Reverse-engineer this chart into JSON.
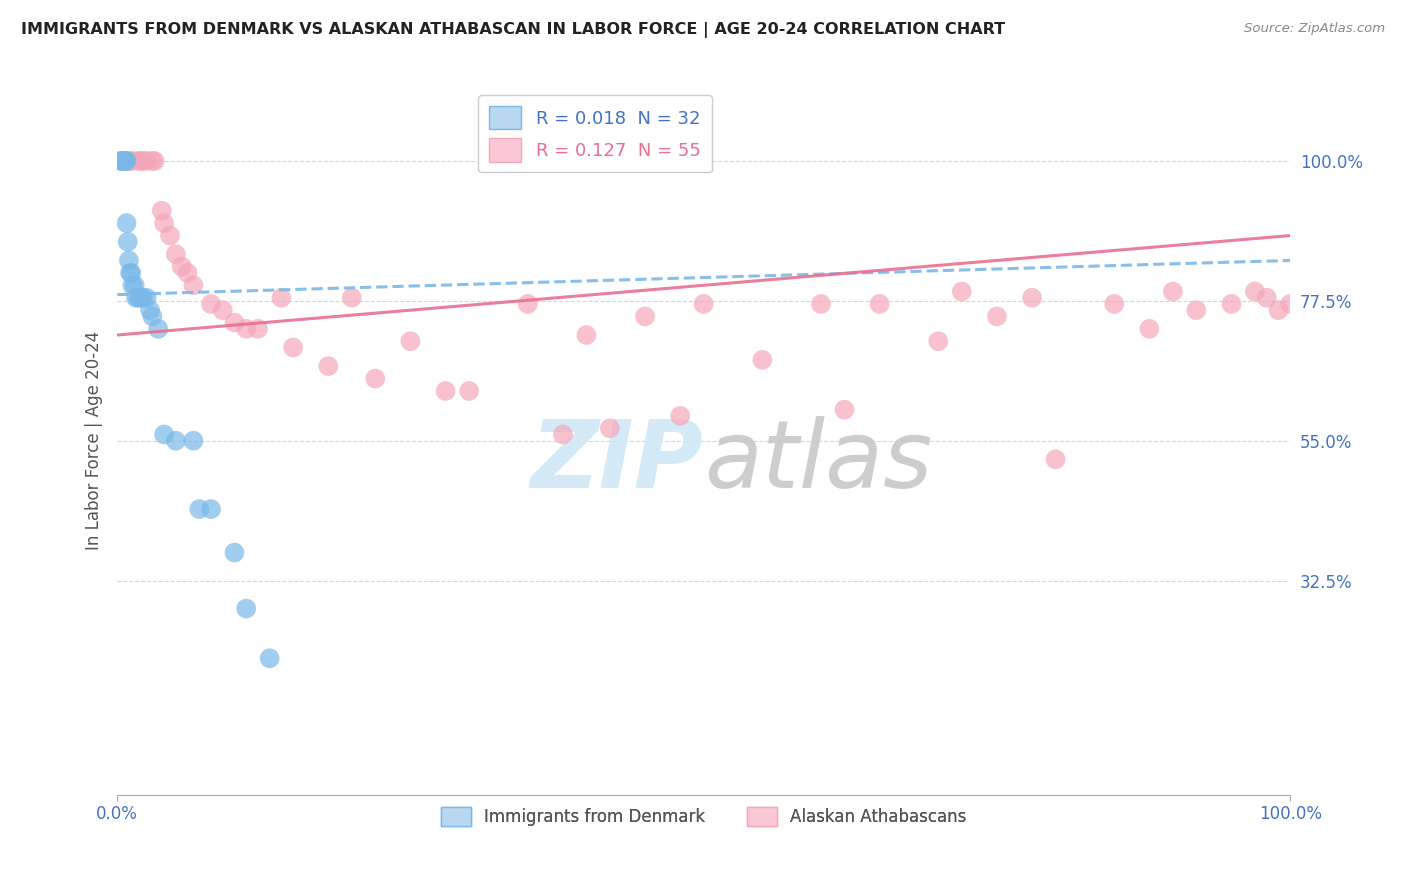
{
  "title": "IMMIGRANTS FROM DENMARK VS ALASKAN ATHABASCAN IN LABOR FORCE | AGE 20-24 CORRELATION CHART",
  "source": "Source: ZipAtlas.com",
  "ylabel": "In Labor Force | Age 20-24",
  "ytick_labels": [
    "100.0%",
    "77.5%",
    "55.0%",
    "32.5%"
  ],
  "ytick_values": [
    1.0,
    0.775,
    0.55,
    0.325
  ],
  "xlim": [
    0.0,
    1.0
  ],
  "ylim": [
    -0.02,
    1.12
  ],
  "denmark_color": "#7ab8e8",
  "athabascan_color": "#f4a7b9",
  "denmark_trendline": [
    0.0,
    1.0,
    0.785,
    0.84
  ],
  "athabascan_trendline": [
    0.0,
    1.0,
    0.72,
    0.88
  ],
  "watermark_zip": "ZIP",
  "watermark_atlas": "atlas",
  "background_color": "#ffffff",
  "grid_color": "#cccccc",
  "legend_r1": "R = 0.018",
  "legend_n1": "N = 32",
  "legend_r2": "R = 0.127",
  "legend_n2": "N = 55",
  "legend_label1": "Immigrants from Denmark",
  "legend_label2": "Alaskan Athabascans",
  "denmark_x": [
    0.003,
    0.004,
    0.005,
    0.005,
    0.006,
    0.006,
    0.007,
    0.007,
    0.008,
    0.008,
    0.009,
    0.01,
    0.011,
    0.012,
    0.013,
    0.015,
    0.016,
    0.018,
    0.02,
    0.022,
    0.025,
    0.028,
    0.03,
    0.035,
    0.04,
    0.05,
    0.065,
    0.07,
    0.08,
    0.1,
    0.11,
    0.13
  ],
  "denmark_y": [
    1.0,
    1.0,
    1.0,
    1.0,
    1.0,
    1.0,
    1.0,
    1.0,
    1.0,
    0.9,
    0.87,
    0.84,
    0.82,
    0.82,
    0.8,
    0.8,
    0.78,
    0.78,
    0.78,
    0.78,
    0.78,
    0.76,
    0.75,
    0.73,
    0.56,
    0.55,
    0.55,
    0.44,
    0.44,
    0.37,
    0.28,
    0.2
  ],
  "athabascan_x": [
    0.005,
    0.008,
    0.01,
    0.013,
    0.018,
    0.02,
    0.022,
    0.025,
    0.03,
    0.032,
    0.038,
    0.04,
    0.045,
    0.05,
    0.055,
    0.06,
    0.065,
    0.08,
    0.09,
    0.1,
    0.11,
    0.12,
    0.14,
    0.15,
    0.18,
    0.2,
    0.22,
    0.25,
    0.28,
    0.3,
    0.35,
    0.38,
    0.4,
    0.42,
    0.45,
    0.48,
    0.5,
    0.55,
    0.6,
    0.62,
    0.65,
    0.7,
    0.72,
    0.75,
    0.78,
    0.8,
    0.85,
    0.88,
    0.9,
    0.92,
    0.95,
    0.97,
    0.98,
    0.99,
    1.0
  ],
  "athabascan_y": [
    1.0,
    1.0,
    1.0,
    1.0,
    1.0,
    1.0,
    1.0,
    1.0,
    1.0,
    1.0,
    0.92,
    0.9,
    0.88,
    0.85,
    0.83,
    0.82,
    0.8,
    0.77,
    0.76,
    0.74,
    0.73,
    0.73,
    0.78,
    0.7,
    0.67,
    0.78,
    0.65,
    0.71,
    0.63,
    0.63,
    0.77,
    0.56,
    0.72,
    0.57,
    0.75,
    0.59,
    0.77,
    0.68,
    0.77,
    0.6,
    0.77,
    0.71,
    0.79,
    0.75,
    0.78,
    0.52,
    0.77,
    0.73,
    0.79,
    0.76,
    0.77,
    0.79,
    0.78,
    0.76,
    0.77
  ]
}
